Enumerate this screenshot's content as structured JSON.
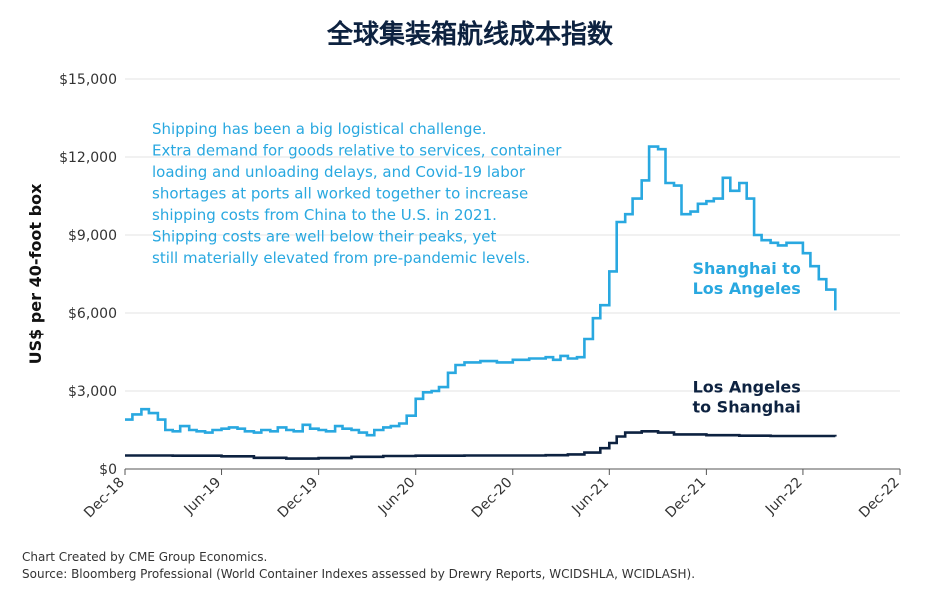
{
  "chart_data": {
    "type": "line",
    "title": "全球集装箱航线成本指数",
    "ylabel": "US$ per 40-foot box",
    "xlabel": "",
    "ylim": [
      0,
      15000
    ],
    "yticks": [
      0,
      3000,
      6000,
      9000,
      12000,
      15000
    ],
    "ytick_labels": [
      "$0",
      "$3,000",
      "$6,000",
      "$9,000",
      "$12,000",
      "$15,000"
    ],
    "xlim": [
      "2018-12-01",
      "2022-12-01"
    ],
    "xticks": [
      "2018-12-01",
      "2019-06-01",
      "2019-12-01",
      "2020-06-01",
      "2020-12-01",
      "2021-06-01",
      "2021-12-01",
      "2022-06-01",
      "2022-12-01"
    ],
    "xtick_labels": [
      "Dec-18",
      "Jun-19",
      "Dec-19",
      "Jun-20",
      "Dec-20",
      "Jun-21",
      "Dec-21",
      "Jun-22",
      "Dec-22"
    ],
    "grid": "horizontal",
    "colors": {
      "shanghai_la": "#29a8e0",
      "la_shanghai": "#0d2240",
      "annotation": "#29a8e0"
    },
    "series": [
      {
        "name": "Shanghai to Los Angeles",
        "x": [
          "2018-12-01",
          "2018-12-15",
          "2019-01-01",
          "2019-01-15",
          "2019-02-01",
          "2019-02-15",
          "2019-03-01",
          "2019-03-15",
          "2019-04-01",
          "2019-04-15",
          "2019-05-01",
          "2019-05-15",
          "2019-06-01",
          "2019-06-15",
          "2019-07-01",
          "2019-07-15",
          "2019-08-01",
          "2019-08-15",
          "2019-09-01",
          "2019-09-15",
          "2019-10-01",
          "2019-10-15",
          "2019-11-01",
          "2019-11-15",
          "2019-12-01",
          "2019-12-15",
          "2020-01-01",
          "2020-01-15",
          "2020-02-01",
          "2020-02-15",
          "2020-03-01",
          "2020-03-15",
          "2020-04-01",
          "2020-04-15",
          "2020-05-01",
          "2020-05-15",
          "2020-06-01",
          "2020-06-15",
          "2020-07-01",
          "2020-07-15",
          "2020-08-01",
          "2020-08-15",
          "2020-09-01",
          "2020-10-01",
          "2020-11-01",
          "2020-12-01",
          "2021-01-01",
          "2021-02-01",
          "2021-02-15",
          "2021-03-01",
          "2021-03-15",
          "2021-04-01",
          "2021-04-15",
          "2021-05-01",
          "2021-05-15",
          "2021-06-01",
          "2021-06-15",
          "2021-07-01",
          "2021-07-15",
          "2021-08-01",
          "2021-08-15",
          "2021-09-01",
          "2021-09-15",
          "2021-10-01",
          "2021-10-15",
          "2021-11-01",
          "2021-11-15",
          "2021-12-01",
          "2021-12-15",
          "2022-01-01",
          "2022-01-15",
          "2022-02-01",
          "2022-02-15",
          "2022-03-01",
          "2022-03-15",
          "2022-04-01",
          "2022-04-15",
          "2022-05-01",
          "2022-05-15",
          "2022-06-01",
          "2022-06-15",
          "2022-07-01",
          "2022-07-15",
          "2022-08-01"
        ],
        "y": [
          1900,
          2100,
          2300,
          2150,
          1900,
          1500,
          1450,
          1650,
          1500,
          1450,
          1400,
          1500,
          1550,
          1600,
          1550,
          1450,
          1400,
          1500,
          1450,
          1600,
          1500,
          1450,
          1700,
          1550,
          1500,
          1450,
          1650,
          1550,
          1500,
          1400,
          1300,
          1500,
          1600,
          1650,
          1750,
          2050,
          2700,
          2950,
          3000,
          3150,
          3700,
          4000,
          4100,
          4150,
          4100,
          4200,
          4250,
          4300,
          4200,
          4350,
          4250,
          4300,
          5000,
          5800,
          6300,
          7600,
          9500,
          9800,
          10400,
          11100,
          12400,
          12300,
          11000,
          10900,
          9800,
          9900,
          10200,
          10300,
          10400,
          11200,
          10700,
          11000,
          10400,
          9000,
          8800,
          8700,
          8600,
          8700,
          8700,
          8300,
          7800,
          7300,
          6900,
          6100
        ]
      },
      {
        "name": "Los Angeles to Shanghai",
        "x": [
          "2018-12-01",
          "2019-03-01",
          "2019-06-01",
          "2019-08-01",
          "2019-10-01",
          "2019-12-01",
          "2020-02-01",
          "2020-04-01",
          "2020-06-01",
          "2020-09-01",
          "2020-12-01",
          "2021-02-01",
          "2021-03-15",
          "2021-04-15",
          "2021-05-15",
          "2021-06-01",
          "2021-06-15",
          "2021-07-01",
          "2021-08-01",
          "2021-09-01",
          "2021-10-01",
          "2021-12-01",
          "2022-02-01",
          "2022-04-01",
          "2022-06-01",
          "2022-08-01"
        ],
        "y": [
          520,
          510,
          490,
          430,
          400,
          420,
          470,
          500,
          510,
          520,
          520,
          530,
          560,
          630,
          800,
          1000,
          1250,
          1400,
          1450,
          1400,
          1330,
          1300,
          1280,
          1270,
          1270,
          1250
        ]
      }
    ],
    "series_labels": [
      {
        "text": [
          "Shanghai to",
          "Los Angeles"
        ],
        "at": [
          "2022-02-15",
          7500
        ],
        "anchor": "middle"
      },
      {
        "text": [
          "Los Angeles",
          "to Shanghai"
        ],
        "at": [
          "2022-02-15",
          2950
        ],
        "anchor": "middle"
      }
    ],
    "annotation": {
      "lines": [
        "Shipping has been a big logistical challenge.",
        "Extra demand for goods relative to services, container",
        "loading and unloading delays, and Covid-19 labor",
        "shortages at ports all worked together to increase",
        "shipping costs from China to the U.S. in 2021.",
        "Shipping costs are well below their peaks, yet",
        "still materially elevated from pre-pandemic levels."
      ]
    }
  },
  "footer": {
    "credit": "Chart Created by CME Group Economics.",
    "source": "Source: Bloomberg Professional (World Container Indexes assessed by Drewry Reports, WCIDSHLA, WCIDLASH)."
  }
}
